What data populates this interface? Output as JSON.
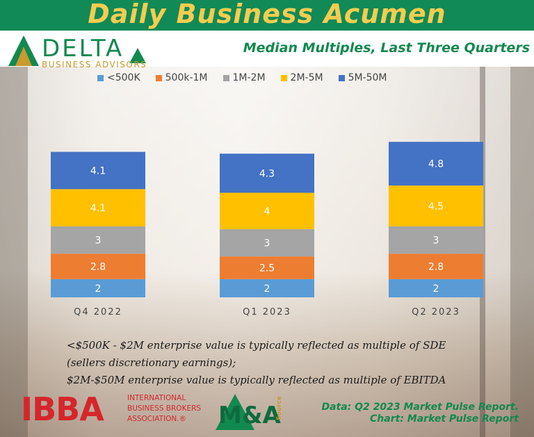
{
  "header": {
    "title": "Daily Business Acumen",
    "subtitle": "Median Multiples, Last Three Quarters"
  },
  "logo": {
    "word": "DELTA",
    "tagline": "BUSINESS ADVISORS"
  },
  "colors": {
    "<500K": "#5b9bd5",
    "500k-1M": "#ed7d31",
    "1M-2M": "#a5a5a5",
    "2M-5M": "#ffc000",
    "5M-50M": "#4472c4",
    "brand_green": "#12894f",
    "brand_gold": "#f5cc4f"
  },
  "chart_data": {
    "type": "bar",
    "stacked": true,
    "categories": [
      "Q4 2022",
      "Q1 2023",
      "Q2 2023"
    ],
    "series": [
      {
        "name": "<500K",
        "values": [
          2,
          2,
          2
        ]
      },
      {
        "name": "500k-1M",
        "values": [
          2.8,
          2.5,
          2.8
        ]
      },
      {
        "name": "1M-2M",
        "values": [
          3,
          3,
          3
        ]
      },
      {
        "name": "2M-5M",
        "values": [
          4.1,
          4,
          4.5
        ]
      },
      {
        "name": "5M-50M",
        "values": [
          4.1,
          4.3,
          4.8
        ]
      }
    ],
    "legend_position": "top",
    "grid": false,
    "ylim": [
      0,
      19.1
    ]
  },
  "notes": {
    "line1": "<$500K - $2M enterprise value is typically reflected as multiple of SDE",
    "line2": "(sellers discretionary earnings);",
    "line3": "$2M-$50M enterprise value is typically reflected as multiple of EBITDA"
  },
  "footer": {
    "ibba_big": "IBBA",
    "ibba_line1": "INTERNATIONAL",
    "ibba_line2": "BUSINESS BROKERS",
    "ibba_line3": "ASSOCIATION.®",
    "ma_text": "M&A",
    "ma_sub": "Source",
    "source_line1": "Data: Q2 2023 Market Pulse Report.",
    "source_line2": "Chart: Market Pulse Report"
  }
}
